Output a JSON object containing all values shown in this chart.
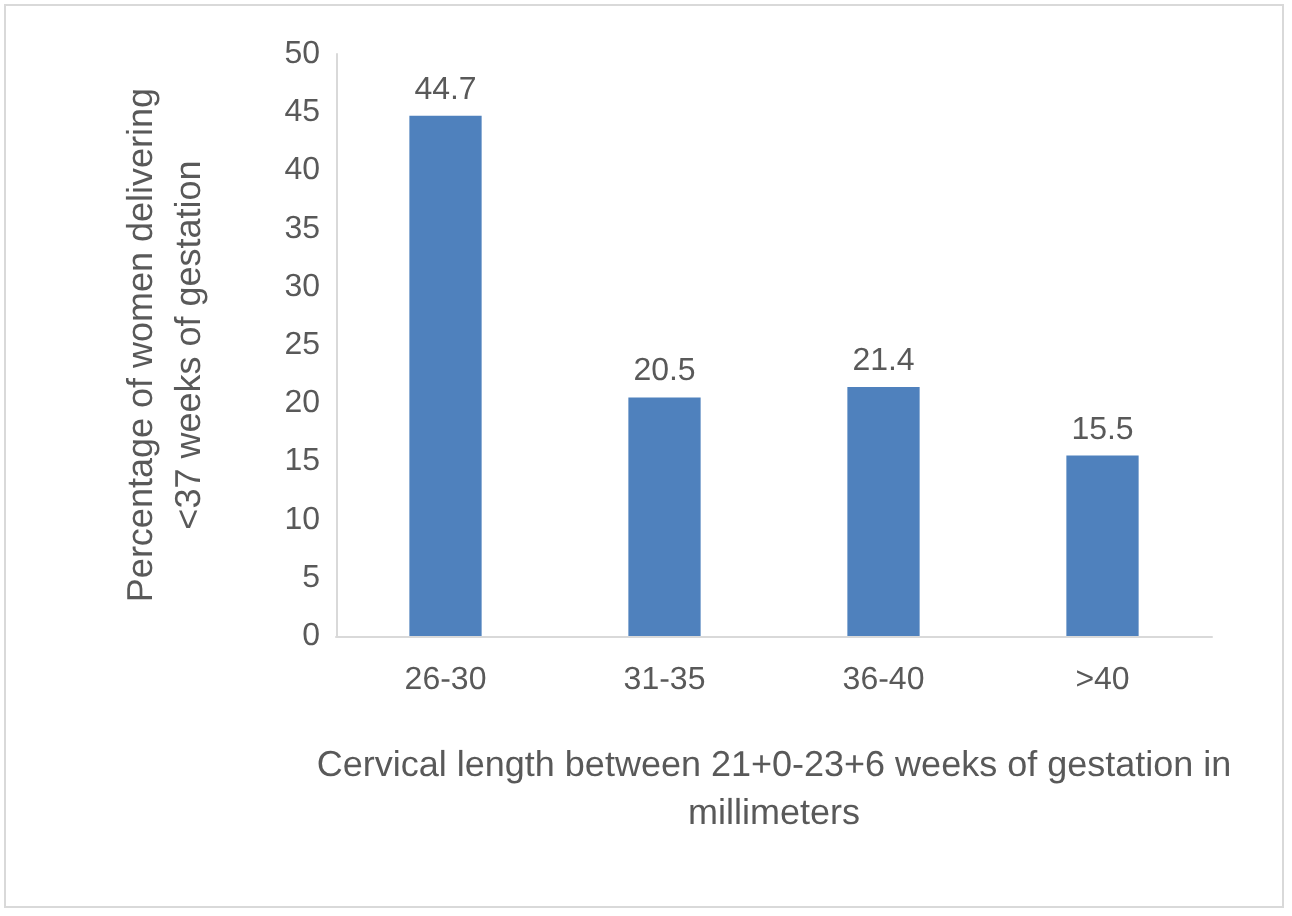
{
  "chart_data": {
    "type": "bar",
    "xlabel": "Cervical length between 21+0-23+6 weeks of gestation in millimeters",
    "ylabel": "Percentage of women delivering <37 weeks of gestation",
    "categories": [
      "26-30",
      "31-35",
      "36-40",
      ">40"
    ],
    "values": [
      44.7,
      20.5,
      21.4,
      15.5
    ],
    "color": "#4f81bd",
    "ylim": [
      0,
      50
    ],
    "yticks": [
      0,
      5,
      10,
      15,
      20,
      25,
      30,
      35,
      40,
      45,
      50
    ],
    "grid": false,
    "data_labels": true
  }
}
